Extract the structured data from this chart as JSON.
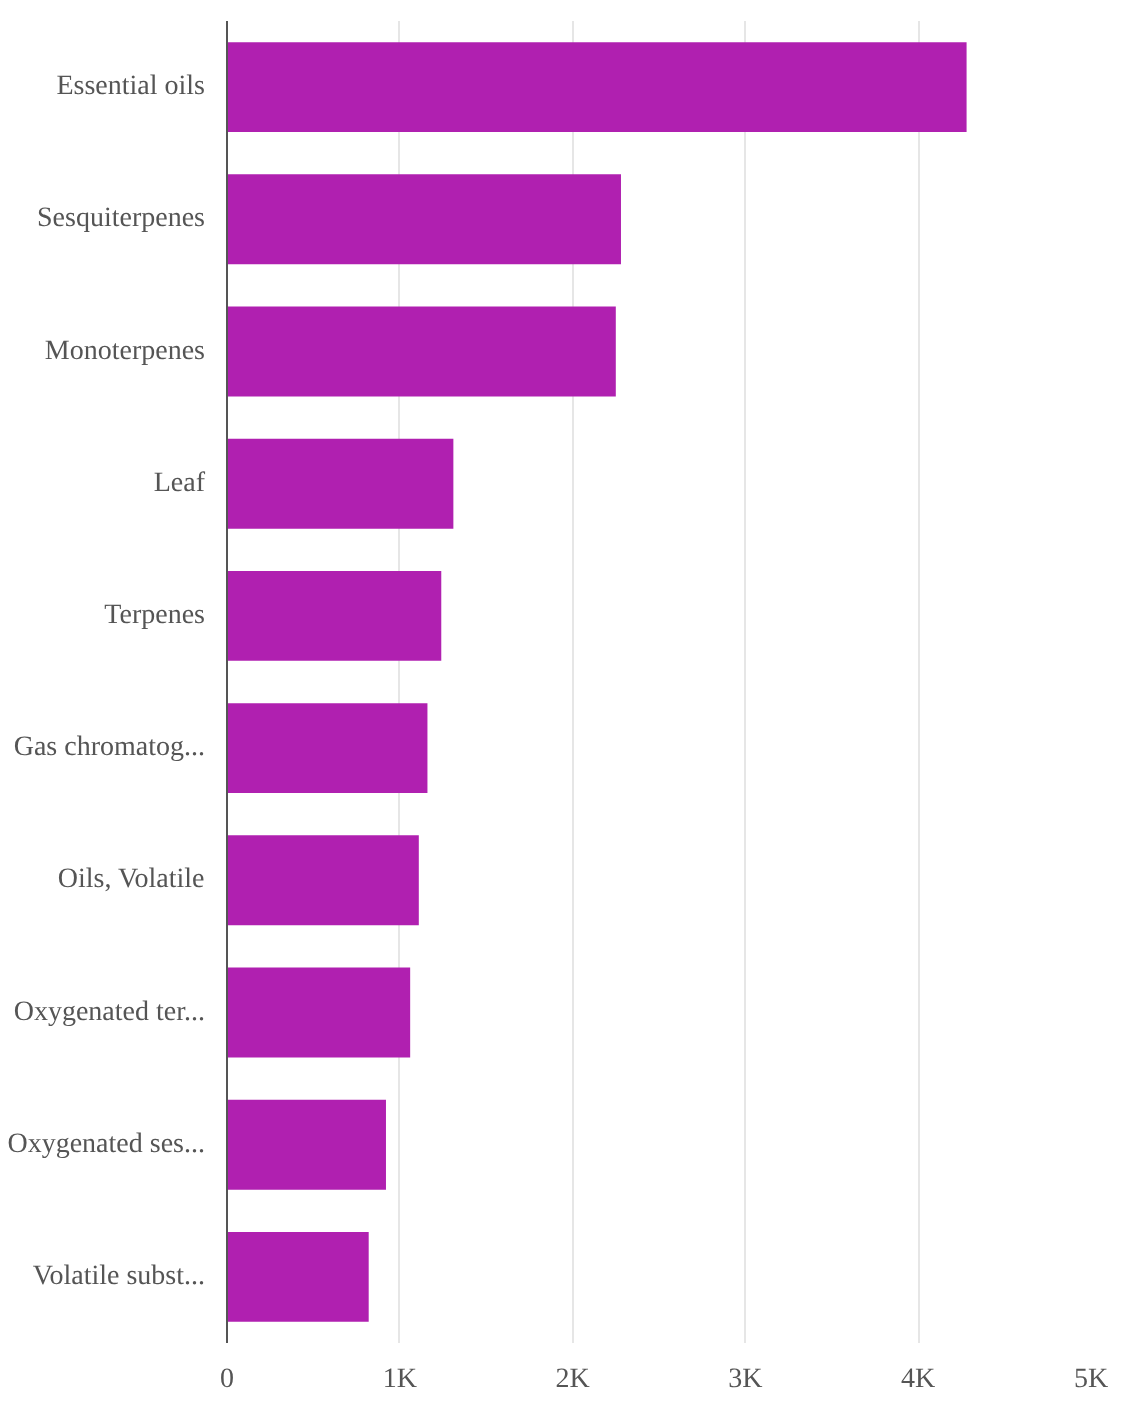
{
  "chart_data": {
    "type": "bar",
    "orientation": "horizontal",
    "categories": [
      "Essential oils",
      "Sesquiterpenes",
      "Monoterpenes",
      "Leaf",
      "Terpenes",
      "Gas chromatog...",
      "Oils, Volatile",
      "Oxygenated ter...",
      "Oxygenated ses...",
      "Volatile subst..."
    ],
    "values": [
      4280,
      2280,
      2250,
      1310,
      1240,
      1160,
      1110,
      1060,
      920,
      820
    ],
    "color": "#b020b0",
    "xlim": [
      0,
      5000
    ],
    "xticks": [
      0,
      {
        "value": 1000,
        "label": "1K"
      },
      {
        "value": 2000,
        "label": "2K"
      },
      {
        "value": 3000,
        "label": "3K"
      },
      {
        "value": 4000,
        "label": "4K"
      },
      {
        "value": 5000,
        "label": "5K"
      }
    ],
    "grid": "x"
  }
}
